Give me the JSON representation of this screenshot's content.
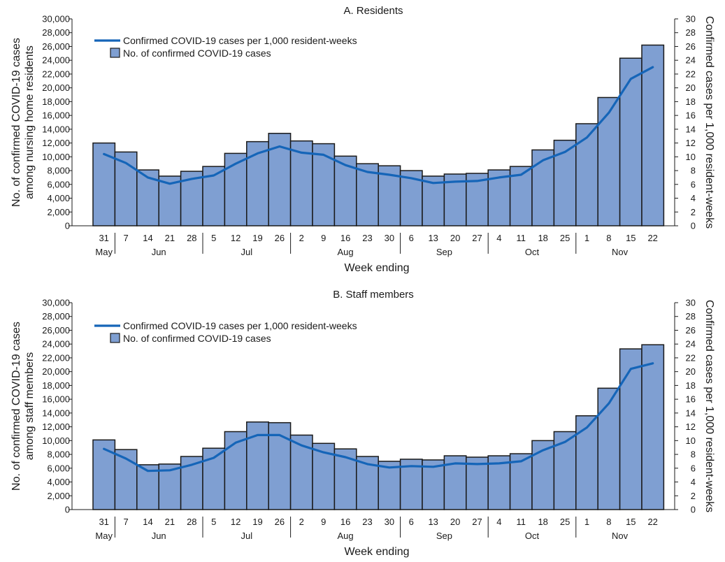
{
  "chart_data": [
    {
      "type": "bar",
      "title": "A. Residents",
      "xlabel": "Week ending",
      "ylabel": "No. of confirmed COVID-19 cases among nursing home residents",
      "y2label": "Confirmed cases per 1,000 resident-weeks",
      "ylim": [
        0,
        30000
      ],
      "y2lim": [
        0,
        30
      ],
      "yticks": [
        "0",
        "2,000",
        "4,000",
        "6,000",
        "8,000",
        "10,000",
        "12,000",
        "14,000",
        "16,000",
        "18,000",
        "20,000",
        "22,000",
        "24,000",
        "26,000",
        "28,000",
        "30,000"
      ],
      "y2ticks": [
        "0",
        "2",
        "4",
        "6",
        "8",
        "10",
        "12",
        "14",
        "16",
        "18",
        "20",
        "22",
        "24",
        "26",
        "28",
        "30"
      ],
      "categories": [
        "31",
        "7",
        "14",
        "21",
        "28",
        "5",
        "12",
        "19",
        "26",
        "2",
        "9",
        "16",
        "23",
        "30",
        "6",
        "13",
        "20",
        "27",
        "4",
        "11",
        "18",
        "25",
        "1",
        "8",
        "15",
        "22"
      ],
      "months": [
        {
          "label": "May",
          "start": 0,
          "end": 0
        },
        {
          "label": "Jun",
          "start": 1,
          "end": 4
        },
        {
          "label": "Jul",
          "start": 5,
          "end": 8
        },
        {
          "label": "Aug",
          "start": 9,
          "end": 13
        },
        {
          "label": "Sep",
          "start": 14,
          "end": 17
        },
        {
          "label": "Oct",
          "start": 18,
          "end": 21
        },
        {
          "label": "Nov",
          "start": 22,
          "end": 25
        }
      ],
      "legend": {
        "line_label": "Confirmed COVID-19 cases per 1,000 resident-weeks",
        "bar_label": "No. of confirmed COVID-19 cases"
      },
      "series": [
        {
          "name": "No. of confirmed COVID-19 cases",
          "kind": "bar",
          "axis": "left",
          "values": [
            12000,
            10700,
            8100,
            7200,
            7900,
            8600,
            10500,
            12200,
            13400,
            12300,
            11900,
            10100,
            9000,
            8700,
            8000,
            7200,
            7500,
            7600,
            8100,
            8600,
            11000,
            12400,
            14800,
            18600,
            24300,
            26200
          ]
        },
        {
          "name": "Confirmed COVID-19 cases per 1,000 resident-weeks",
          "kind": "line",
          "axis": "right",
          "values": [
            10.4,
            9.1,
            7.0,
            6.1,
            6.8,
            7.3,
            9.0,
            10.5,
            11.5,
            10.6,
            10.3,
            8.8,
            7.8,
            7.4,
            6.9,
            6.2,
            6.4,
            6.5,
            7.0,
            7.4,
            9.5,
            10.7,
            12.8,
            16.4,
            21.3,
            23.0
          ]
        }
      ]
    },
    {
      "type": "bar",
      "title": "B. Staff members",
      "xlabel": "Week ending",
      "ylabel": "No. of confirmed COVID-19 cases among staff members",
      "y2label": "Confirmed cases per 1,000 resident-weeks",
      "ylim": [
        0,
        30000
      ],
      "y2lim": [
        0,
        30
      ],
      "yticks": [
        "0",
        "2,000",
        "4,000",
        "6,000",
        "8,000",
        "10,000",
        "12,000",
        "14,000",
        "16,000",
        "18,000",
        "20,000",
        "22,000",
        "24,000",
        "26,000",
        "28,000",
        "30,000"
      ],
      "y2ticks": [
        "0",
        "2",
        "4",
        "6",
        "8",
        "10",
        "12",
        "14",
        "16",
        "18",
        "20",
        "22",
        "24",
        "26",
        "28",
        "30"
      ],
      "categories": [
        "31",
        "7",
        "14",
        "21",
        "28",
        "5",
        "12",
        "19",
        "26",
        "2",
        "9",
        "16",
        "23",
        "30",
        "6",
        "13",
        "20",
        "27",
        "4",
        "11",
        "18",
        "25",
        "1",
        "8",
        "15",
        "22"
      ],
      "months": [
        {
          "label": "May",
          "start": 0,
          "end": 0
        },
        {
          "label": "Jun",
          "start": 1,
          "end": 4
        },
        {
          "label": "Jul",
          "start": 5,
          "end": 8
        },
        {
          "label": "Aug",
          "start": 9,
          "end": 13
        },
        {
          "label": "Sep",
          "start": 14,
          "end": 17
        },
        {
          "label": "Oct",
          "start": 18,
          "end": 21
        },
        {
          "label": "Nov",
          "start": 22,
          "end": 25
        }
      ],
      "legend": {
        "line_label": "Confirmed COVID-19 cases per 1,000 resident-weeks",
        "bar_label": "No. of confirmed COVID-19 cases"
      },
      "series": [
        {
          "name": "No. of confirmed COVID-19 cases",
          "kind": "bar",
          "axis": "left",
          "values": [
            10100,
            8700,
            6500,
            6600,
            7700,
            8900,
            11300,
            12700,
            12600,
            10800,
            9600,
            8800,
            7700,
            7000,
            7300,
            7200,
            7800,
            7600,
            7800,
            8100,
            10000,
            11300,
            13600,
            17600,
            23300,
            23900
          ]
        },
        {
          "name": "Confirmed COVID-19 cases per 1,000 resident-weeks",
          "kind": "line",
          "axis": "right",
          "values": [
            8.8,
            7.4,
            5.6,
            5.7,
            6.5,
            7.5,
            9.7,
            10.8,
            10.8,
            9.3,
            8.3,
            7.6,
            6.6,
            6.1,
            6.3,
            6.2,
            6.7,
            6.6,
            6.7,
            7.0,
            8.6,
            9.8,
            11.9,
            15.4,
            20.4,
            21.2
          ]
        }
      ]
    }
  ]
}
